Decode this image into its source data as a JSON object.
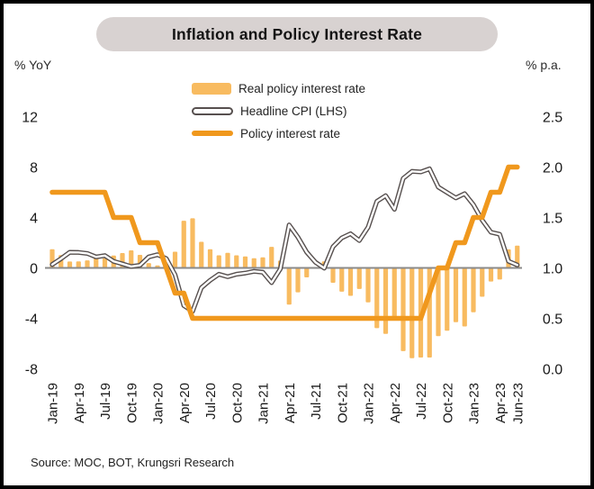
{
  "title": "Inflation and Policy Interest Rate",
  "axes": {
    "left_unit": "% YoY",
    "right_unit": "% p.a."
  },
  "legend": {
    "items": [
      {
        "label": "Real policy interest rate",
        "swatch": "bar-swatch"
      },
      {
        "label": "Headline CPI (LHS)",
        "swatch": "double-line-swatch"
      },
      {
        "label": "Policy interest rate",
        "swatch": "thick-line-swatch"
      }
    ]
  },
  "source": "Source: MOC, BOT, Krungsri Research",
  "colors": {
    "bar": "#F8BB60",
    "policy_line": "#F0981D",
    "cpi_line": "#57504F",
    "cpi_core": "#FFFFFF",
    "axis_line": "#8A8A8A",
    "pill_bg": "#D8D2D1",
    "text": "#1A1A1A"
  },
  "chart_data": {
    "type": "combo",
    "title": "Inflation and Policy Interest Rate",
    "x": [
      "Jan-19",
      "Feb-19",
      "Mar-19",
      "Apr-19",
      "May-19",
      "Jun-19",
      "Jul-19",
      "Aug-19",
      "Sep-19",
      "Oct-19",
      "Nov-19",
      "Dec-19",
      "Jan-20",
      "Feb-20",
      "Mar-20",
      "Apr-20",
      "May-20",
      "Jun-20",
      "Jul-20",
      "Aug-20",
      "Sep-20",
      "Oct-20",
      "Nov-20",
      "Dec-20",
      "Jan-21",
      "Feb-21",
      "Mar-21",
      "Apr-21",
      "May-21",
      "Jun-21",
      "Jul-21",
      "Aug-21",
      "Sep-21",
      "Oct-21",
      "Nov-21",
      "Dec-21",
      "Jan-22",
      "Feb-22",
      "Mar-22",
      "Apr-22",
      "May-22",
      "Jun-22",
      "Jul-22",
      "Aug-22",
      "Sep-22",
      "Oct-22",
      "Nov-22",
      "Dec-22",
      "Jan-23",
      "Feb-23",
      "Mar-23",
      "Apr-23",
      "May-23",
      "Jun-23"
    ],
    "x_tick_labels": [
      "Jan-19",
      "Apr-19",
      "Jul-19",
      "Oct-19",
      "Jan-20",
      "Apr-20",
      "Jul-20",
      "Oct-20",
      "Jan-21",
      "Apr-21",
      "Jul-21",
      "Oct-21",
      "Jan-22",
      "Apr-22",
      "Jul-22",
      "Oct-22",
      "Jan-23",
      "Apr-23",
      "Jun-23"
    ],
    "left_axis": {
      "unit": "% YoY",
      "ticks": [
        12,
        8,
        4,
        0,
        -4,
        -8
      ],
      "range": [
        -9.6,
        13.3
      ],
      "grid": false
    },
    "right_axis": {
      "unit": "% p.a.",
      "ticks": [
        "2.5",
        "2.0",
        "1.5",
        "1.0",
        "0.5",
        "0.0"
      ],
      "range": [
        -0.2,
        2.66
      ],
      "grid": false
    },
    "legend_position": "top-center",
    "series": [
      {
        "name": "Real policy interest rate",
        "type": "bar",
        "axis": "left",
        "values": [
          1.48,
          1.02,
          0.51,
          0.52,
          0.6,
          0.88,
          0.77,
          0.98,
          1.18,
          1.39,
          1.04,
          0.38,
          0.2,
          0.26,
          1.29,
          3.74,
          3.94,
          2.07,
          1.48,
          1.0,
          1.2,
          1.0,
          0.91,
          0.77,
          0.84,
          1.67,
          0.58,
          -2.91,
          -1.94,
          -0.75,
          0.05,
          0.52,
          -1.18,
          -1.88,
          -2.21,
          -1.67,
          -2.73,
          -4.78,
          -5.23,
          -4.15,
          -6.6,
          -7.16,
          -7.11,
          -7.11,
          -5.41,
          -4.98,
          -4.3,
          -4.64,
          -3.52,
          -2.29,
          -1.08,
          -0.92,
          1.47,
          1.77
        ]
      },
      {
        "name": "Headline CPI (LHS)",
        "type": "line",
        "axis": "left",
        "values": [
          0.27,
          0.73,
          1.24,
          1.23,
          1.15,
          0.87,
          0.98,
          0.52,
          0.32,
          0.11,
          0.21,
          0.87,
          1.05,
          0.74,
          -0.54,
          -2.99,
          -3.44,
          -1.57,
          -0.98,
          -0.5,
          -0.7,
          -0.5,
          -0.41,
          -0.27,
          -0.34,
          -1.17,
          -0.08,
          3.41,
          2.44,
          1.25,
          0.45,
          -0.02,
          1.68,
          2.38,
          2.71,
          2.17,
          3.23,
          5.28,
          5.73,
          4.65,
          7.1,
          7.66,
          7.61,
          7.86,
          6.41,
          5.98,
          5.55,
          5.89,
          5.02,
          3.79,
          2.83,
          2.67,
          0.53,
          0.23
        ]
      },
      {
        "name": "Policy interest rate",
        "type": "line",
        "axis": "right",
        "values": [
          1.75,
          1.75,
          1.75,
          1.75,
          1.75,
          1.75,
          1.75,
          1.5,
          1.5,
          1.5,
          1.25,
          1.25,
          1.25,
          1.0,
          0.75,
          0.75,
          0.5,
          0.5,
          0.5,
          0.5,
          0.5,
          0.5,
          0.5,
          0.5,
          0.5,
          0.5,
          0.5,
          0.5,
          0.5,
          0.5,
          0.5,
          0.5,
          0.5,
          0.5,
          0.5,
          0.5,
          0.5,
          0.5,
          0.5,
          0.5,
          0.5,
          0.5,
          0.5,
          0.75,
          1.0,
          1.0,
          1.25,
          1.25,
          1.5,
          1.5,
          1.75,
          1.75,
          2.0,
          2.0
        ]
      }
    ],
    "source": "Source: MOC, BOT, Krungsri Research"
  }
}
